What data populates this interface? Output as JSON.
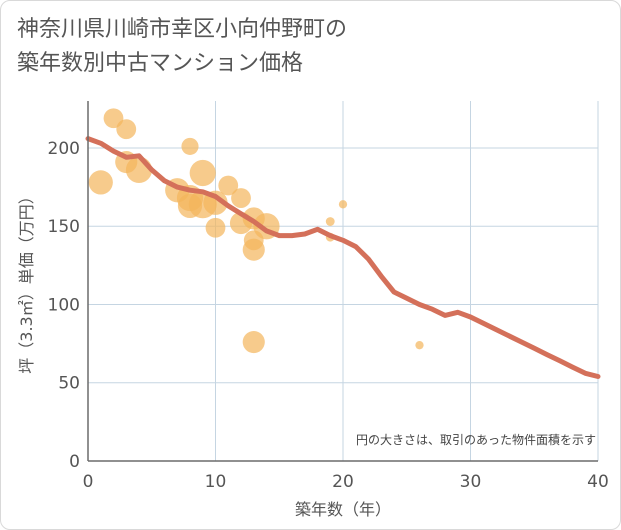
{
  "title_line1": "神奈川県川崎市幸区小向仲野町の",
  "title_line2": "築年数別中古マンション価格",
  "chart_data": {
    "type": "scatter",
    "title": "神奈川県川崎市幸区小向仲野町の築年数別中古マンション価格",
    "xlabel": "築年数（年）",
    "ylabel": "坪（3.3㎡）単価（万円）",
    "xlim": [
      0,
      40
    ],
    "ylim": [
      0,
      230
    ],
    "x_ticks": [
      "0",
      "10",
      "20",
      "30",
      "40"
    ],
    "y_ticks": [
      "0",
      "50",
      "100",
      "150",
      "200"
    ],
    "x_tick_values": [
      0,
      10,
      20,
      30,
      40
    ],
    "y_tick_values": [
      0,
      50,
      100,
      150,
      200
    ],
    "grid": true,
    "annotation": "円の大きさは、取引のあった物件面積を示す",
    "colors": {
      "bubble": "#f4b55b",
      "line": "#d4705a",
      "grid": "#c5d5e2",
      "axis": "#6b6b6b"
    },
    "series": [
      {
        "kind": "bubble",
        "points": [
          {
            "x": 1,
            "y": 178,
            "size": 3
          },
          {
            "x": 2,
            "y": 219,
            "size": 2
          },
          {
            "x": 3,
            "y": 212,
            "size": 2
          },
          {
            "x": 3,
            "y": 191,
            "size": 2.5
          },
          {
            "x": 4,
            "y": 186,
            "size": 3.5
          },
          {
            "x": 7,
            "y": 173,
            "size": 3
          },
          {
            "x": 8,
            "y": 201,
            "size": 1.5
          },
          {
            "x": 8,
            "y": 168,
            "size": 3.5
          },
          {
            "x": 8,
            "y": 163,
            "size": 3
          },
          {
            "x": 9,
            "y": 184,
            "size": 3.5
          },
          {
            "x": 9,
            "y": 164,
            "size": 4
          },
          {
            "x": 10,
            "y": 165,
            "size": 3
          },
          {
            "x": 10,
            "y": 149,
            "size": 2
          },
          {
            "x": 11,
            "y": 176,
            "size": 2
          },
          {
            "x": 12,
            "y": 168,
            "size": 2
          },
          {
            "x": 12,
            "y": 152,
            "size": 2.5
          },
          {
            "x": 13,
            "y": 155,
            "size": 2.5
          },
          {
            "x": 13,
            "y": 141,
            "size": 2
          },
          {
            "x": 13,
            "y": 135,
            "size": 2.5
          },
          {
            "x": 13,
            "y": 76,
            "size": 2.5
          },
          {
            "x": 14,
            "y": 150,
            "size": 3.5
          },
          {
            "x": 19,
            "y": 153,
            "size": 0.4
          },
          {
            "x": 19,
            "y": 143,
            "size": 0.4
          },
          {
            "x": 20,
            "y": 164,
            "size": 0.35
          },
          {
            "x": 26,
            "y": 74,
            "size": 0.35
          }
        ]
      },
      {
        "kind": "line",
        "x": [
          0,
          1,
          2,
          3,
          4,
          5,
          6,
          7,
          8,
          9,
          10,
          11,
          12,
          13,
          14,
          15,
          16,
          17,
          18,
          19,
          20,
          21,
          22,
          23,
          24,
          25,
          26,
          27,
          28,
          29,
          30,
          31,
          32,
          33,
          34,
          35,
          36,
          37,
          38,
          39,
          40
        ],
        "y": [
          206,
          203,
          198,
          194,
          195,
          186,
          179,
          175,
          173,
          172,
          169,
          163,
          158,
          153,
          147,
          144,
          144,
          145,
          148,
          144,
          141,
          137,
          129,
          118,
          108,
          104,
          100,
          97,
          93,
          95,
          92,
          88,
          84,
          80,
          76,
          72,
          68,
          64,
          60,
          56,
          54
        ]
      }
    ]
  }
}
